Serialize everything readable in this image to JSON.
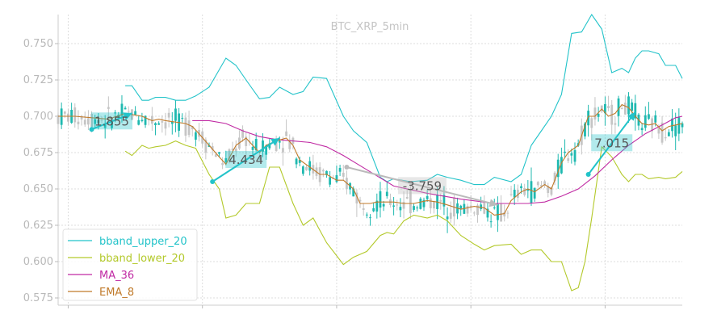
{
  "chart_data": {
    "type": "line",
    "title": "BTC_XRP_5min",
    "xlabel": "",
    "ylabel": "",
    "ylim": [
      0.57,
      0.77
    ],
    "yticks": [
      "0.750",
      "0.725",
      "0.700",
      "0.675",
      "0.650",
      "0.625",
      "0.600",
      "0.575"
    ],
    "grid": true,
    "legend_position": "bottom-left",
    "colors": {
      "bband_upper_20": "#22c3c9",
      "bband_lower_20": "#b3c92a",
      "MA_36": "#c02aa3",
      "EMA_8": "#c07a2a",
      "candle_up": "#1fb9b0",
      "candle_down": "#c5c5c5",
      "trade_positive": "#22c3c9",
      "trade_negative": "#bbbbbb"
    },
    "series": [
      {
        "name": "bband_upper_20",
        "x": [
          20,
          22,
          25,
          27,
          29,
          32,
          35,
          38,
          41,
          45,
          50,
          53,
          56,
          60,
          63,
          66,
          70,
          73,
          76,
          80,
          85,
          88,
          92,
          96,
          98,
          100,
          105,
          110,
          113,
          116,
          120,
          124,
          127,
          130,
          135,
          138,
          141,
          144,
          147,
          150,
          153,
          156,
          159,
          162,
          165,
          168,
          170,
          172,
          174,
          176,
          179,
          181,
          184,
          186
        ],
        "y": [
          0.721,
          0.721,
          0.711,
          0.711,
          0.713,
          0.713,
          0.711,
          0.711,
          0.714,
          0.72,
          0.74,
          0.735,
          0.725,
          0.712,
          0.713,
          0.72,
          0.715,
          0.717,
          0.727,
          0.726,
          0.7,
          0.69,
          0.682,
          0.658,
          0.655,
          0.657,
          0.655,
          0.656,
          0.66,
          0.658,
          0.656,
          0.653,
          0.653,
          0.658,
          0.655,
          0.66,
          0.68,
          0.69,
          0.7,
          0.715,
          0.757,
          0.758,
          0.77,
          0.76,
          0.73,
          0.733,
          0.73,
          0.74,
          0.745,
          0.745,
          0.743,
          0.735,
          0.735,
          0.726
        ]
      },
      {
        "name": "bband_lower_20",
        "x": [
          20,
          22,
          25,
          27,
          29,
          32,
          35,
          38,
          41,
          45,
          48,
          50,
          53,
          56,
          60,
          63,
          66,
          70,
          73,
          76,
          80,
          85,
          88,
          92,
          96,
          98,
          100,
          103,
          106,
          110,
          113,
          116,
          120,
          124,
          127,
          130,
          135,
          138,
          141,
          144,
          147,
          150,
          153,
          155,
          157,
          159,
          162,
          165,
          168,
          170,
          172,
          174,
          176,
          179,
          181,
          184,
          186
        ],
        "y": [
          0.676,
          0.673,
          0.68,
          0.678,
          0.679,
          0.68,
          0.683,
          0.68,
          0.678,
          0.66,
          0.65,
          0.63,
          0.632,
          0.64,
          0.64,
          0.665,
          0.665,
          0.64,
          0.625,
          0.63,
          0.613,
          0.598,
          0.603,
          0.607,
          0.618,
          0.62,
          0.619,
          0.628,
          0.632,
          0.63,
          0.632,
          0.628,
          0.618,
          0.612,
          0.608,
          0.611,
          0.612,
          0.605,
          0.608,
          0.608,
          0.6,
          0.6,
          0.58,
          0.582,
          0.6,
          0.63,
          0.679,
          0.672,
          0.66,
          0.655,
          0.66,
          0.66,
          0.657,
          0.658,
          0.657,
          0.658,
          0.662
        ]
      },
      {
        "name": "MA_36",
        "x": [
          40,
          45,
          50,
          55,
          60,
          65,
          70,
          75,
          80,
          85,
          90,
          95,
          100,
          110,
          120,
          130,
          140,
          145,
          150,
          155,
          160,
          165,
          170,
          175,
          180,
          184,
          186
        ],
        "y": [
          0.697,
          0.697,
          0.695,
          0.69,
          0.686,
          0.684,
          0.683,
          0.682,
          0.679,
          0.673,
          0.666,
          0.659,
          0.652,
          0.647,
          0.643,
          0.64,
          0.64,
          0.641,
          0.645,
          0.65,
          0.659,
          0.67,
          0.68,
          0.688,
          0.694,
          0.699,
          0.7
        ]
      },
      {
        "name": "EMA_8",
        "x": [
          0,
          5,
          10,
          15,
          20,
          25,
          28,
          30,
          32,
          35,
          38,
          40,
          42,
          45,
          48,
          50,
          53,
          56,
          58,
          60,
          62,
          65,
          68,
          70,
          72,
          75,
          78,
          80,
          83,
          85,
          88,
          90,
          93,
          95,
          97,
          100,
          103,
          106,
          110,
          113,
          116,
          120,
          124,
          127,
          130,
          133,
          135,
          138,
          140,
          142,
          145,
          147,
          150,
          152,
          155,
          158,
          160,
          162,
          164,
          166,
          168,
          170,
          172,
          174,
          176,
          178,
          180,
          182,
          184,
          186
        ],
        "y": [
          0.7,
          0.7,
          0.699,
          0.698,
          0.702,
          0.7,
          0.697,
          0.698,
          0.697,
          0.696,
          0.695,
          0.693,
          0.688,
          0.68,
          0.672,
          0.667,
          0.68,
          0.685,
          0.68,
          0.675,
          0.68,
          0.683,
          0.685,
          0.68,
          0.67,
          0.665,
          0.66,
          0.66,
          0.656,
          0.656,
          0.65,
          0.64,
          0.64,
          0.641,
          0.641,
          0.641,
          0.64,
          0.64,
          0.642,
          0.641,
          0.639,
          0.636,
          0.638,
          0.637,
          0.632,
          0.633,
          0.642,
          0.648,
          0.65,
          0.648,
          0.653,
          0.65,
          0.668,
          0.675,
          0.68,
          0.7,
          0.7,
          0.705,
          0.7,
          0.702,
          0.708,
          0.706,
          0.7,
          0.695,
          0.694,
          0.695,
          0.69,
          0.693,
          0.694,
          0.695
        ]
      }
    ],
    "trades": [
      {
        "x0": 10,
        "y0": 0.691,
        "x1": 22,
        "y1": 0.702,
        "label": "1.855",
        "result": "positive"
      },
      {
        "x0": 46,
        "y0": 0.655,
        "x1": 66,
        "y1": 0.685,
        "label": "4.434",
        "result": "positive"
      },
      {
        "x0": 86,
        "y0": 0.665,
        "x1": 131,
        "y1": 0.639,
        "label": "-3.759",
        "result": "negative"
      },
      {
        "x0": 158,
        "y0": 0.66,
        "x1": 172,
        "y1": 0.703,
        "label": "7.015",
        "result": "positive"
      }
    ]
  }
}
